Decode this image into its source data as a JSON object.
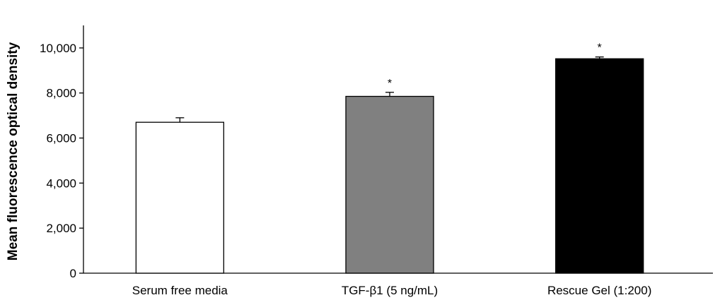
{
  "chart_data": {
    "type": "bar",
    "title": "",
    "xlabel": "",
    "ylabel": "Mean fluorescence optical density",
    "ylim": [
      0,
      11000
    ],
    "yticks": [
      0,
      2000,
      4000,
      6000,
      8000,
      10000
    ],
    "ytick_labels": [
      "0",
      "2,000",
      "4,000",
      "6,000",
      "8,000",
      "10,000"
    ],
    "categories": [
      "Serum free media",
      "TGF-β1 (5 ng/mL)",
      "Rescue Gel (1:200)"
    ],
    "values": [
      6700,
      7850,
      9520
    ],
    "errors": [
      200,
      180,
      80
    ],
    "significance": [
      "",
      "*",
      "*"
    ],
    "bar_colors": [
      "#ffffff",
      "#808080",
      "#000000"
    ],
    "bar_edge_color": "#000000",
    "grid": false,
    "legend": "none"
  }
}
